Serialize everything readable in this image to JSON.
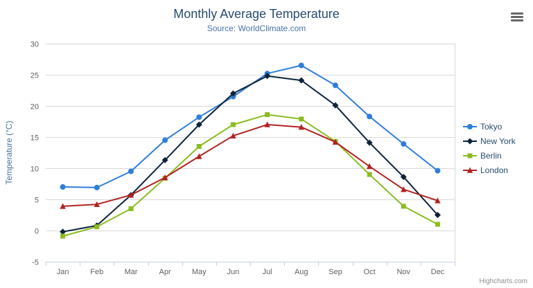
{
  "header": {
    "title": "Monthly Average Temperature",
    "subtitle": "Source: WorldClimate.com"
  },
  "credits": "Highcharts.com",
  "icons": {
    "menu": "hamburger-menu-icon"
  },
  "colors": {
    "title": "#274b6d",
    "subtitle": "#4572a7",
    "axis_label": "#606060",
    "axis_line": "#c0d0e0",
    "gridline": "#d8d8d8",
    "legend_text": "#274b6d",
    "credits_text": "#909090"
  },
  "chart_data": {
    "type": "line",
    "title": "Monthly Average Temperature",
    "subtitle": "Source: WorldClimate.com",
    "categories": [
      "Jan",
      "Feb",
      "Mar",
      "Apr",
      "May",
      "Jun",
      "Jul",
      "Aug",
      "Sep",
      "Oct",
      "Nov",
      "Dec"
    ],
    "xlabel": "",
    "ylabel": "Temperature (°C)",
    "ylim": [
      -5,
      30
    ],
    "yticks": [
      -5,
      0,
      5,
      10,
      15,
      20,
      25,
      30
    ],
    "grid": true,
    "legend_position": "right",
    "series": [
      {
        "name": "Tokyo",
        "color": "#2f7ed8",
        "marker": "circle",
        "values": [
          7.0,
          6.9,
          9.5,
          14.5,
          18.2,
          21.5,
          25.2,
          26.5,
          23.3,
          18.3,
          13.9,
          9.6
        ]
      },
      {
        "name": "New York",
        "color": "#0d233a",
        "marker": "diamond",
        "values": [
          -0.2,
          0.8,
          5.7,
          11.3,
          17.0,
          22.0,
          24.8,
          24.1,
          20.1,
          14.1,
          8.6,
          2.5
        ]
      },
      {
        "name": "Berlin",
        "color": "#8bbc21",
        "marker": "square",
        "values": [
          -0.9,
          0.6,
          3.5,
          8.4,
          13.5,
          17.0,
          18.6,
          17.9,
          14.3,
          9.0,
          3.9,
          1.0
        ]
      },
      {
        "name": "London",
        "color": "#b22222",
        "marker": "triangle",
        "values": [
          3.9,
          4.2,
          5.7,
          8.5,
          11.9,
          15.2,
          17.0,
          16.6,
          14.2,
          10.3,
          6.6,
          4.8
        ]
      }
    ]
  }
}
